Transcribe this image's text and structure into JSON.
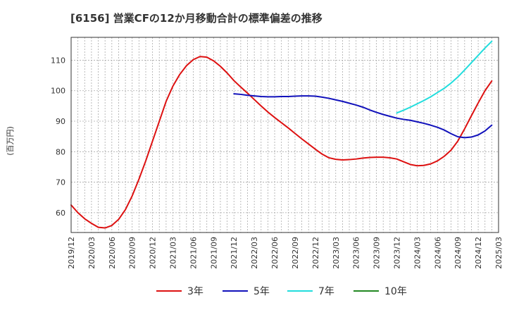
{
  "chart_data": {
    "type": "line",
    "title": "[6156]  営業CFの12か月移動合計の標準偏差の推移",
    "ylabel": "(百万円)",
    "xlabel": "",
    "ylim": [
      53.5,
      117.5
    ],
    "yticks": [
      60,
      70,
      80,
      90,
      100,
      110
    ],
    "x_tick_labels": [
      "2019/12",
      "2020/03",
      "2020/06",
      "2020/09",
      "2020/12",
      "2021/03",
      "2021/06",
      "2021/09",
      "2021/12",
      "2022/03",
      "2022/06",
      "2022/09",
      "2022/12",
      "2023/03",
      "2023/06",
      "2023/09",
      "2023/12",
      "2024/03",
      "2024/06",
      "2024/09",
      "2024/12",
      "2025/03"
    ],
    "grid": true,
    "legend_position": "bottom",
    "series": [
      {
        "name": "3年",
        "color": "#dd1111",
        "start_index": 0,
        "values": [
          62.5,
          60.0,
          58.0,
          56.5,
          55.2,
          55.0,
          55.8,
          57.8,
          61.0,
          65.5,
          71.0,
          77.0,
          83.5,
          90.0,
          96.5,
          101.5,
          105.3,
          108.2,
          110.2,
          111.2,
          111.0,
          109.8,
          108.0,
          105.8,
          103.3,
          101.2,
          99.2,
          97.1,
          95.0,
          93.0,
          91.2,
          89.5,
          87.8,
          86.0,
          84.2,
          82.5,
          80.8,
          79.2,
          78.0,
          77.5,
          77.3,
          77.4,
          77.6,
          77.9,
          78.1,
          78.2,
          78.2,
          78.0,
          77.6,
          76.7,
          75.8,
          75.4,
          75.5,
          76.0,
          77.0,
          78.5,
          80.5,
          83.5,
          87.5,
          91.8,
          96.0,
          100.0,
          103.2
        ]
      },
      {
        "name": "5年",
        "color": "#1111bb",
        "start_index": 24,
        "values": [
          99.0,
          98.8,
          98.5,
          98.3,
          98.1,
          98.0,
          98.0,
          98.1,
          98.1,
          98.2,
          98.3,
          98.3,
          98.2,
          97.9,
          97.5,
          97.0,
          96.5,
          95.9,
          95.3,
          94.6,
          93.7,
          92.9,
          92.2,
          91.6,
          91.0,
          90.6,
          90.3,
          89.8,
          89.3,
          88.7,
          88.0,
          87.1,
          85.9,
          84.9,
          84.6,
          84.8,
          85.5,
          86.8,
          88.7
        ]
      },
      {
        "name": "7年",
        "color": "#22dddd",
        "start_index": 48,
        "values": [
          92.7,
          93.6,
          94.6,
          95.7,
          96.8,
          98.0,
          99.4,
          100.8,
          102.5,
          104.5,
          106.8,
          109.2,
          111.6,
          114.0,
          116.2
        ]
      },
      {
        "name": "10年",
        "color": "#228822",
        "start_index": 0,
        "values": []
      }
    ]
  }
}
